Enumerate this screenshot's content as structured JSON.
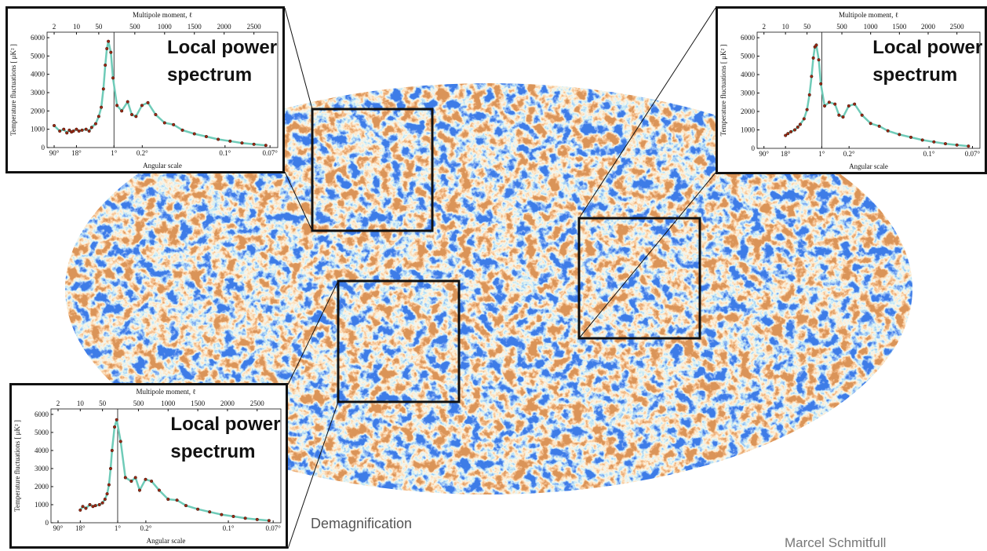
{
  "slide": {
    "caption": "Demagnification",
    "author": "Marcel Schmitfull"
  },
  "chart_data": [
    {
      "type": "line",
      "title": "Multipole moment, ℓ",
      "x_label": "Angular scale",
      "y_label": "Temperature fluctuations [ μK² ]",
      "annotation": "Local power spectrum",
      "xscale": "log-linear",
      "xsplit": 150,
      "xlim": [
        1.2,
        2900
      ],
      "ylim": [
        0,
        6300
      ],
      "yticks": [
        0,
        1000,
        2000,
        3000,
        4000,
        5000,
        6000
      ],
      "x2ticks": [
        2,
        10,
        50,
        500,
        1000,
        1500,
        2000,
        2500
      ],
      "xticks": [
        {
          "value": 2,
          "label": "90°"
        },
        {
          "value": 10,
          "label": "18°"
        },
        {
          "value": 150,
          "label": "1°"
        },
        {
          "value": 625,
          "label": "0.2°"
        },
        {
          "value": 2015,
          "label": "0.1°"
        },
        {
          "value": 2770,
          "label": "0.07°"
        }
      ],
      "x": [
        2,
        3,
        4,
        5,
        6,
        7,
        8,
        10,
        12,
        15,
        20,
        25,
        30,
        40,
        50,
        60,
        70,
        80,
        90,
        100,
        120,
        140,
        200,
        280,
        380,
        450,
        520,
        620,
        720,
        850,
        1000,
        1150,
        1300,
        1500,
        1700,
        1900,
        2100,
        2300,
        2500,
        2700
      ],
      "series": [
        {
          "name": "Local power spectrum",
          "color": "#9b2a14",
          "line_color": "#6fcbb8",
          "values": [
            1200,
            900,
            1000,
            800,
            950,
            850,
            900,
            1000,
            900,
            950,
            1000,
            900,
            1100,
            1300,
            1700,
            2200,
            3200,
            4500,
            5400,
            5800,
            5200,
            3800,
            2300,
            2000,
            2500,
            1800,
            1700,
            2300,
            2450,
            1800,
            1350,
            1250,
            950,
            750,
            600,
            450,
            350,
            250,
            180,
            120
          ]
        }
      ]
    },
    {
      "type": "line",
      "title": "Multipole moment, ℓ",
      "x_label": "Angular scale",
      "y_label": "Temperature fluctuations [ μK² ]",
      "annotation": "Local power spectrum",
      "xscale": "log-linear",
      "xsplit": 150,
      "xlim": [
        1.2,
        2900
      ],
      "ylim": [
        0,
        6300
      ],
      "yticks": [
        0,
        1000,
        2000,
        3000,
        4000,
        5000,
        6000
      ],
      "x2ticks": [
        2,
        10,
        50,
        500,
        1000,
        1500,
        2000,
        2500
      ],
      "xticks": [
        {
          "value": 2,
          "label": "90°"
        },
        {
          "value": 10,
          "label": "18°"
        },
        {
          "value": 150,
          "label": "1°"
        },
        {
          "value": 625,
          "label": "0.2°"
        },
        {
          "value": 2015,
          "label": "0.1°"
        },
        {
          "value": 2770,
          "label": "0.07°"
        }
      ],
      "x": [
        2,
        3,
        4,
        5,
        6,
        7,
        8,
        10,
        12,
        15,
        20,
        25,
        30,
        40,
        50,
        60,
        70,
        80,
        90,
        100,
        120,
        140,
        200,
        280,
        380,
        450,
        520,
        620,
        720,
        850,
        1000,
        1150,
        1300,
        1500,
        1700,
        1900,
        2100,
        2300,
        2500,
        2700
      ],
      "series": [
        {
          "name": "Local power spectrum",
          "color": "#9b2a14",
          "line_color": "#6fcbb8",
          "values": [
            null,
            null,
            null,
            null,
            null,
            null,
            null,
            700,
            800,
            900,
            1000,
            1150,
            1300,
            1600,
            2100,
            2900,
            3900,
            4900,
            5500,
            5600,
            4800,
            3500,
            2300,
            2500,
            2400,
            1800,
            1700,
            2300,
            2400,
            1800,
            1350,
            1200,
            950,
            750,
            600,
            450,
            350,
            250,
            180,
            120
          ]
        }
      ]
    },
    {
      "type": "line",
      "title": "Multipole moment, ℓ",
      "x_label": "Angular scale",
      "y_label": "Temperature fluctuations [ μK² ]",
      "annotation": "Local power spectrum",
      "xscale": "log-linear",
      "xsplit": 150,
      "xlim": [
        1.2,
        2900
      ],
      "ylim": [
        0,
        6300
      ],
      "yticks": [
        0,
        1000,
        2000,
        3000,
        4000,
        5000,
        6000
      ],
      "x2ticks": [
        2,
        10,
        50,
        500,
        1000,
        1500,
        2000,
        2500
      ],
      "xticks": [
        {
          "value": 2,
          "label": "90°"
        },
        {
          "value": 10,
          "label": "18°"
        },
        {
          "value": 150,
          "label": "1°"
        },
        {
          "value": 625,
          "label": "0.2°"
        },
        {
          "value": 2015,
          "label": "0.1°"
        },
        {
          "value": 2770,
          "label": "0.07°"
        }
      ],
      "x": [
        2,
        3,
        4,
        5,
        6,
        7,
        8,
        10,
        12,
        15,
        20,
        25,
        30,
        40,
        50,
        60,
        70,
        80,
        90,
        100,
        120,
        140,
        200,
        280,
        380,
        450,
        520,
        620,
        720,
        850,
        1000,
        1150,
        1300,
        1500,
        1700,
        1900,
        2100,
        2300,
        2500,
        2700
      ],
      "series": [
        {
          "name": "Local power spectrum",
          "color": "#9b2a14",
          "line_color": "#6fcbb8",
          "values": [
            null,
            null,
            null,
            null,
            null,
            null,
            null,
            700,
            900,
            800,
            1000,
            900,
            950,
            1000,
            1100,
            1300,
            1600,
            2100,
            3000,
            4000,
            5300,
            5700,
            4500,
            2500,
            2300,
            2500,
            1800,
            2400,
            2300,
            1800,
            1300,
            1250,
            950,
            750,
            600,
            450,
            350,
            250,
            180,
            120
          ]
        }
      ]
    }
  ]
}
